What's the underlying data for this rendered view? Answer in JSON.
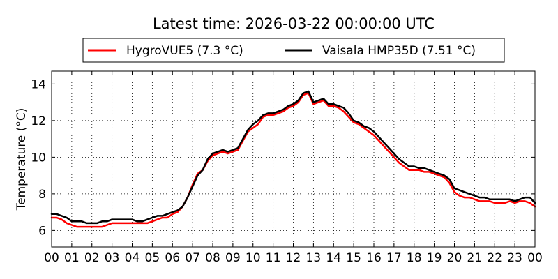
{
  "chart_data": {
    "type": "line",
    "title": "Latest time: 2026-03-22 00:00:00 UTC",
    "xlabel": "",
    "ylabel": "Temperature (°C)",
    "xlim": [
      0,
      24
    ],
    "ylim": [
      5.1,
      14.7
    ],
    "x_ticks": [
      0,
      1,
      2,
      3,
      4,
      5,
      6,
      7,
      8,
      9,
      10,
      11,
      12,
      13,
      14,
      15,
      16,
      17,
      18,
      19,
      20,
      21,
      22,
      23,
      24
    ],
    "x_tick_labels": [
      "00",
      "01",
      "02",
      "03",
      "04",
      "05",
      "06",
      "07",
      "08",
      "09",
      "10",
      "11",
      "12",
      "13",
      "14",
      "15",
      "16",
      "17",
      "18",
      "19",
      "20",
      "21",
      "22",
      "23",
      "00"
    ],
    "y_ticks": [
      6,
      8,
      10,
      12,
      14
    ],
    "y_tick_labels": [
      "6",
      "8",
      "10",
      "12",
      "14"
    ],
    "grid": true,
    "legend_position": "top",
    "legend": [
      "HygroVUE5 (7.3 °C)",
      "Vaisala HMP35D (7.51 °C)"
    ],
    "x": [
      0,
      0.25,
      0.5,
      0.75,
      1,
      1.25,
      1.5,
      1.75,
      2,
      2.25,
      2.5,
      2.75,
      3,
      3.25,
      3.5,
      3.75,
      4,
      4.25,
      4.5,
      4.75,
      5,
      5.25,
      5.5,
      5.75,
      6,
      6.25,
      6.5,
      6.75,
      7,
      7.25,
      7.5,
      7.75,
      8,
      8.25,
      8.5,
      8.75,
      9,
      9.25,
      9.5,
      9.75,
      10,
      10.25,
      10.5,
      10.75,
      11,
      11.25,
      11.5,
      11.75,
      12,
      12.25,
      12.5,
      12.75,
      13,
      13.25,
      13.5,
      13.75,
      14,
      14.25,
      14.5,
      14.75,
      15,
      15.25,
      15.5,
      15.75,
      16,
      16.25,
      16.5,
      16.75,
      17,
      17.25,
      17.5,
      17.75,
      18,
      18.25,
      18.5,
      18.75,
      19,
      19.25,
      19.5,
      19.75,
      20,
      20.25,
      20.5,
      20.75,
      21,
      21.25,
      21.5,
      21.75,
      22,
      22.25,
      22.5,
      22.75,
      23,
      23.25,
      23.5,
      23.75,
      24
    ],
    "series": [
      {
        "name": "HygroVUE5 (7.3 °C)",
        "color": "#ff0000",
        "values": [
          6.7,
          6.7,
          6.6,
          6.4,
          6.3,
          6.2,
          6.2,
          6.2,
          6.2,
          6.2,
          6.2,
          6.3,
          6.4,
          6.4,
          6.4,
          6.4,
          6.4,
          6.4,
          6.4,
          6.4,
          6.5,
          6.6,
          6.7,
          6.7,
          6.9,
          7.0,
          7.3,
          7.8,
          8.5,
          9.1,
          9.3,
          9.8,
          10.1,
          10.2,
          10.3,
          10.2,
          10.3,
          10.4,
          10.9,
          11.4,
          11.6,
          11.8,
          12.2,
          12.3,
          12.3,
          12.4,
          12.5,
          12.7,
          12.8,
          13.0,
          13.4,
          13.5,
          12.9,
          13.0,
          13.1,
          12.8,
          12.8,
          12.7,
          12.5,
          12.2,
          11.9,
          11.8,
          11.6,
          11.4,
          11.2,
          10.9,
          10.6,
          10.3,
          10.0,
          9.7,
          9.5,
          9.3,
          9.3,
          9.3,
          9.2,
          9.2,
          9.1,
          9.0,
          8.9,
          8.6,
          8.1,
          7.9,
          7.8,
          7.8,
          7.7,
          7.6,
          7.6,
          7.6,
          7.5,
          7.5,
          7.5,
          7.6,
          7.5,
          7.6,
          7.6,
          7.5,
          7.3
        ]
      },
      {
        "name": "Vaisala HMP35D (7.51 °C)",
        "color": "#000000",
        "values": [
          6.9,
          6.9,
          6.8,
          6.7,
          6.5,
          6.5,
          6.5,
          6.4,
          6.4,
          6.4,
          6.5,
          6.5,
          6.6,
          6.6,
          6.6,
          6.6,
          6.6,
          6.5,
          6.5,
          6.6,
          6.7,
          6.8,
          6.8,
          6.9,
          7.0,
          7.1,
          7.3,
          7.8,
          8.4,
          9.0,
          9.3,
          9.9,
          10.2,
          10.3,
          10.4,
          10.3,
          10.4,
          10.5,
          11.0,
          11.5,
          11.8,
          12.0,
          12.3,
          12.4,
          12.4,
          12.5,
          12.6,
          12.8,
          12.9,
          13.1,
          13.5,
          13.6,
          13.0,
          13.1,
          13.2,
          12.9,
          12.9,
          12.8,
          12.7,
          12.4,
          12.0,
          11.9,
          11.7,
          11.6,
          11.4,
          11.1,
          10.8,
          10.5,
          10.2,
          9.9,
          9.7,
          9.5,
          9.5,
          9.4,
          9.4,
          9.3,
          9.2,
          9.1,
          9.0,
          8.8,
          8.3,
          8.2,
          8.1,
          8.0,
          7.9,
          7.8,
          7.8,
          7.7,
          7.7,
          7.7,
          7.7,
          7.7,
          7.6,
          7.7,
          7.8,
          7.8,
          7.5
        ]
      }
    ]
  }
}
